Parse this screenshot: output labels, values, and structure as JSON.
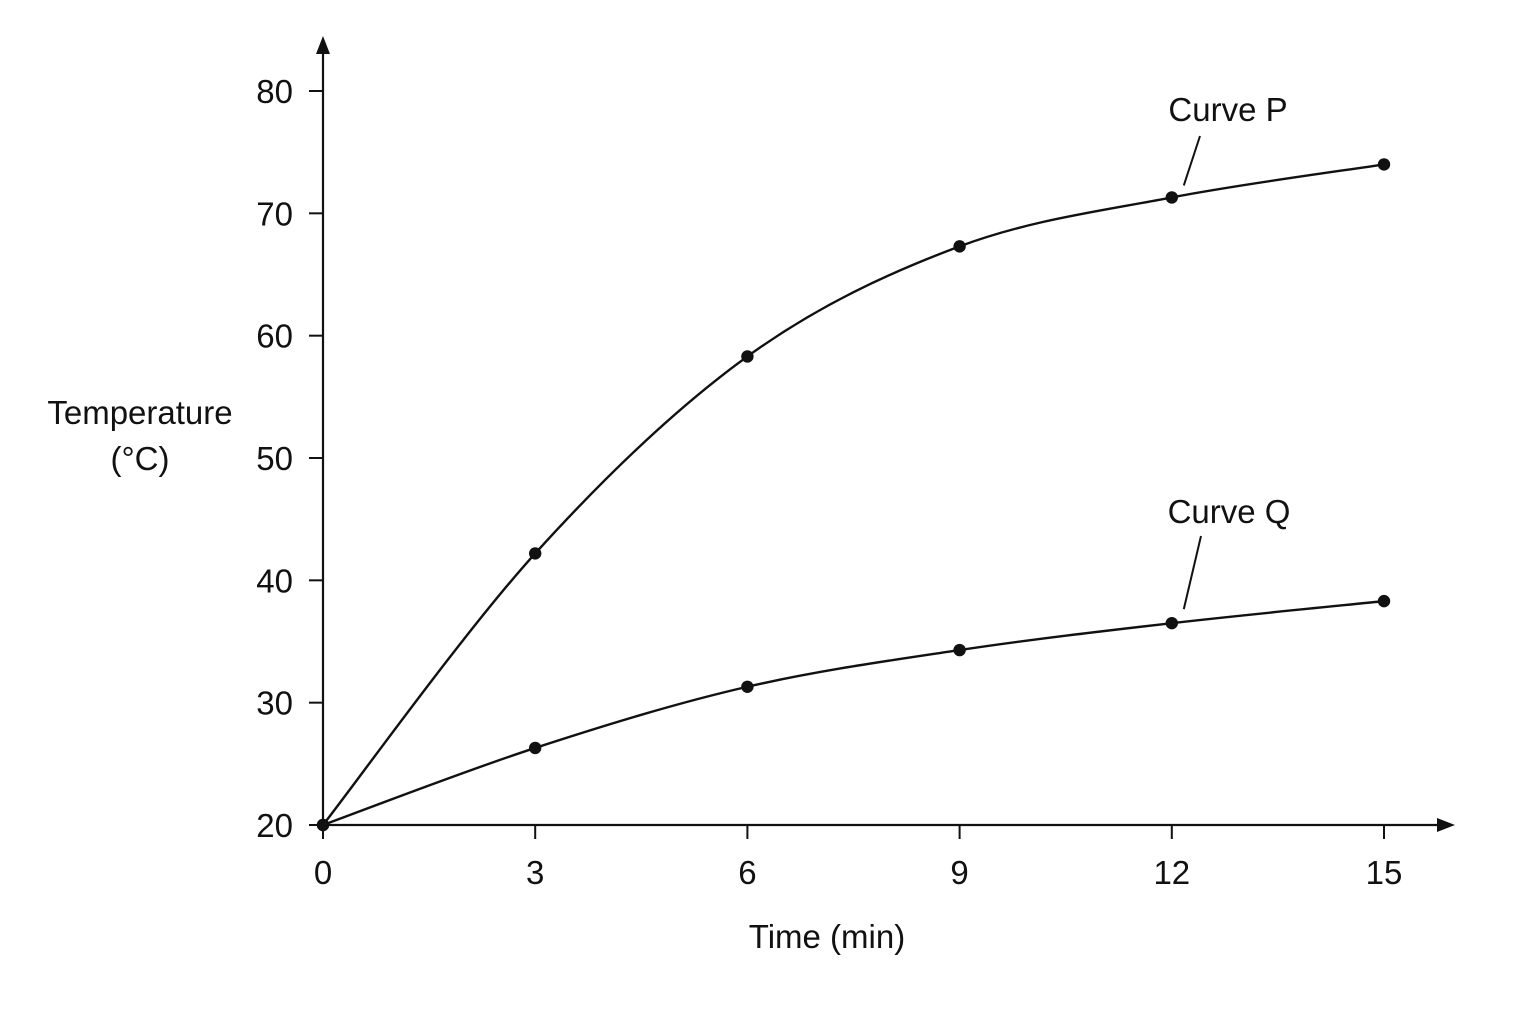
{
  "chart_data": {
    "type": "line",
    "xlabel": "Time (min)",
    "ylabel_lines": [
      "Temperature",
      "(°C)"
    ],
    "x_ticks": [
      0,
      3,
      6,
      9,
      12,
      15
    ],
    "y_ticks": [
      20,
      30,
      40,
      50,
      60,
      70,
      80
    ],
    "xlim": [
      0,
      15
    ],
    "ylim": [
      20,
      80
    ],
    "grid": false,
    "legend": "inline labels with leader lines",
    "series": [
      {
        "name": "Curve P",
        "x": [
          0,
          3,
          6,
          9,
          12,
          15
        ],
        "y": [
          20,
          42.2,
          58.3,
          67.3,
          71.3,
          74
        ]
      },
      {
        "name": "Curve Q",
        "x": [
          0,
          3,
          6,
          9,
          12,
          15
        ],
        "y": [
          20,
          26.3,
          31.3,
          34.3,
          36.5,
          38.3
        ]
      }
    ],
    "colors": {
      "ink": "#111111",
      "background": "#ffffff"
    }
  }
}
